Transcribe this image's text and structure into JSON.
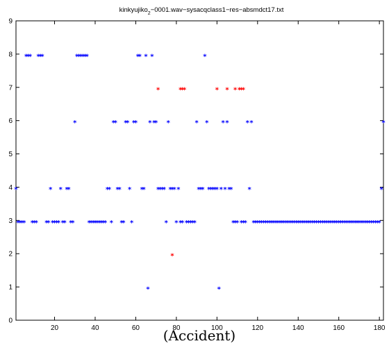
{
  "chart_data": {
    "type": "scatter",
    "title": "kinkyujiko",
    "title_subscript": "2",
    "title_rest": "−0001.wav−sysacqclass1−res−absmdct17.txt",
    "xlabel": "(Accident)",
    "ylabel": "",
    "xlim": [
      1,
      182
    ],
    "ylim": [
      0,
      9
    ],
    "xticks": [
      20,
      40,
      60,
      80,
      100,
      120,
      140,
      160,
      180
    ],
    "yticks": [
      0,
      1,
      2,
      3,
      4,
      5,
      6,
      7,
      8,
      9
    ],
    "marker": "*",
    "colors": {
      "blue": "#0000ff",
      "red": "#ff0000",
      "axis": "#000000"
    },
    "series": [
      {
        "color": "#0000ff",
        "points": [
          [
            1,
            4
          ],
          [
            2,
            3
          ],
          [
            3,
            3
          ],
          [
            4,
            3
          ],
          [
            5,
            3
          ],
          [
            6,
            8
          ],
          [
            7,
            8
          ],
          [
            8,
            8
          ],
          [
            9,
            3
          ],
          [
            10,
            3
          ],
          [
            11,
            3
          ],
          [
            12,
            8
          ],
          [
            13,
            8
          ],
          [
            14,
            8
          ],
          [
            16,
            3
          ],
          [
            17,
            3
          ],
          [
            18,
            4
          ],
          [
            19,
            3
          ],
          [
            20,
            3
          ],
          [
            21,
            3
          ],
          [
            22,
            3
          ],
          [
            23,
            4
          ],
          [
            24,
            3
          ],
          [
            25,
            3
          ],
          [
            26,
            4
          ],
          [
            27,
            4
          ],
          [
            28,
            3
          ],
          [
            29,
            3
          ],
          [
            30,
            6
          ],
          [
            31,
            8
          ],
          [
            32,
            8
          ],
          [
            33,
            8
          ],
          [
            34,
            8
          ],
          [
            35,
            8
          ],
          [
            36,
            8
          ],
          [
            37,
            3
          ],
          [
            38,
            3
          ],
          [
            39,
            3
          ],
          [
            40,
            3
          ],
          [
            41,
            3
          ],
          [
            42,
            3
          ],
          [
            43,
            3
          ],
          [
            44,
            3
          ],
          [
            45,
            3
          ],
          [
            46,
            4
          ],
          [
            47,
            4
          ],
          [
            48,
            3
          ],
          [
            49,
            6
          ],
          [
            50,
            6
          ],
          [
            51,
            4
          ],
          [
            52,
            4
          ],
          [
            53,
            3
          ],
          [
            54,
            3
          ],
          [
            55,
            6
          ],
          [
            56,
            6
          ],
          [
            57,
            4
          ],
          [
            58,
            3
          ],
          [
            59,
            6
          ],
          [
            60,
            6
          ],
          [
            61,
            8
          ],
          [
            62,
            8
          ],
          [
            63,
            4
          ],
          [
            64,
            4
          ],
          [
            65,
            8
          ],
          [
            66,
            1
          ],
          [
            67,
            6
          ],
          [
            68,
            8
          ],
          [
            69,
            6
          ],
          [
            70,
            6
          ],
          [
            71,
            4
          ],
          [
            72,
            4
          ],
          [
            73,
            4
          ],
          [
            74,
            4
          ],
          [
            75,
            3
          ],
          [
            76,
            6
          ],
          [
            77,
            4
          ],
          [
            78,
            4
          ],
          [
            79,
            4
          ],
          [
            80,
            3
          ],
          [
            81,
            4
          ],
          [
            82,
            3
          ],
          [
            83,
            3
          ],
          [
            85,
            3
          ],
          [
            86,
            3
          ],
          [
            87,
            3
          ],
          [
            88,
            3
          ],
          [
            89,
            3
          ],
          [
            90,
            6
          ],
          [
            91,
            4
          ],
          [
            92,
            4
          ],
          [
            93,
            4
          ],
          [
            94,
            8
          ],
          [
            95,
            6
          ],
          [
            96,
            4
          ],
          [
            97,
            4
          ],
          [
            98,
            4
          ],
          [
            99,
            4
          ],
          [
            100,
            4
          ],
          [
            101,
            1
          ],
          [
            102,
            4
          ],
          [
            103,
            6
          ],
          [
            104,
            4
          ],
          [
            105,
            6
          ],
          [
            106,
            4
          ],
          [
            107,
            4
          ],
          [
            108,
            3
          ],
          [
            109,
            3
          ],
          [
            110,
            3
          ],
          [
            112,
            3
          ],
          [
            113,
            3
          ],
          [
            114,
            3
          ],
          [
            115,
            6
          ],
          [
            116,
            4
          ],
          [
            117,
            6
          ],
          [
            118,
            3
          ],
          [
            119,
            3
          ],
          [
            120,
            3
          ],
          [
            121,
            3
          ],
          [
            122,
            3
          ],
          [
            123,
            3
          ],
          [
            124,
            3
          ],
          [
            125,
            3
          ],
          [
            126,
            3
          ],
          [
            127,
            3
          ],
          [
            128,
            3
          ],
          [
            129,
            3
          ],
          [
            130,
            3
          ],
          [
            131,
            3
          ],
          [
            132,
            3
          ],
          [
            133,
            3
          ],
          [
            134,
            3
          ],
          [
            135,
            3
          ],
          [
            136,
            3
          ],
          [
            137,
            3
          ],
          [
            138,
            3
          ],
          [
            139,
            3
          ],
          [
            140,
            3
          ],
          [
            141,
            3
          ],
          [
            142,
            3
          ],
          [
            143,
            3
          ],
          [
            144,
            3
          ],
          [
            145,
            3
          ],
          [
            146,
            3
          ],
          [
            147,
            3
          ],
          [
            148,
            3
          ],
          [
            149,
            3
          ],
          [
            150,
            3
          ],
          [
            151,
            3
          ],
          [
            152,
            3
          ],
          [
            153,
            3
          ],
          [
            154,
            3
          ],
          [
            155,
            3
          ],
          [
            156,
            3
          ],
          [
            157,
            3
          ],
          [
            158,
            3
          ],
          [
            159,
            3
          ],
          [
            160,
            3
          ],
          [
            161,
            3
          ],
          [
            162,
            3
          ],
          [
            163,
            3
          ],
          [
            164,
            3
          ],
          [
            165,
            3
          ],
          [
            166,
            3
          ],
          [
            167,
            3
          ],
          [
            168,
            3
          ],
          [
            169,
            3
          ],
          [
            170,
            3
          ],
          [
            171,
            3
          ],
          [
            172,
            3
          ],
          [
            173,
            3
          ],
          [
            174,
            3
          ],
          [
            175,
            3
          ],
          [
            176,
            3
          ],
          [
            177,
            3
          ],
          [
            178,
            3
          ],
          [
            179,
            3
          ],
          [
            180,
            3
          ],
          [
            181,
            4
          ],
          [
            182,
            6
          ]
        ]
      },
      {
        "color": "#ff0000",
        "points": [
          [
            71,
            7
          ],
          [
            78,
            2
          ],
          [
            82,
            7
          ],
          [
            83,
            7
          ],
          [
            84,
            7
          ],
          [
            100,
            7
          ],
          [
            105,
            7
          ],
          [
            109,
            7
          ],
          [
            111,
            7
          ],
          [
            112,
            7
          ],
          [
            113,
            7
          ]
        ]
      }
    ]
  }
}
